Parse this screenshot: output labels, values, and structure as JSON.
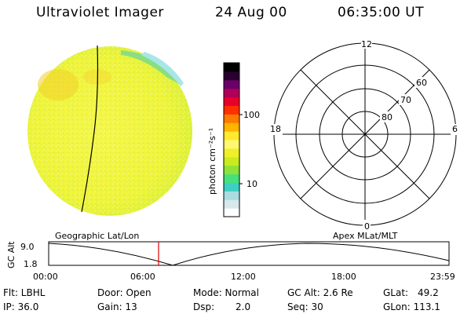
{
  "header": {
    "instrument": "Ultraviolet Imager",
    "date": "24 Aug 00",
    "time": "06:35:00 UT"
  },
  "colorbar": {
    "unit_label": "photon cm⁻²s⁻¹",
    "ticks": [
      "100",
      "10"
    ],
    "colors": [
      "#ffffff",
      "#d8e8ec",
      "#a8dce0",
      "#3ecfc4",
      "#48e07a",
      "#8fe23a",
      "#c8ec20",
      "#eef02a",
      "#fff870",
      "#ffea30",
      "#ffb400",
      "#ff7a00",
      "#ff3000",
      "#e8002a",
      "#b0005a",
      "#6a0068",
      "#2a0030",
      "#000000"
    ]
  },
  "polar": {
    "labels": {
      "top": "12",
      "left": "18",
      "right": "6",
      "bottom": "0",
      "ring_60": "60",
      "ring_70": "70",
      "ring_80": "80"
    }
  },
  "orbit": {
    "left_label": "Geographic Lat/Lon",
    "right_label": "Apex MLat/MLT",
    "y_axis_label": "GC Alt",
    "y_top": "9.0",
    "y_bottom": "1.8",
    "x_ticks": [
      "00:00",
      "06:00",
      "12:00",
      "18:00",
      "23:59"
    ]
  },
  "status": {
    "flt": "Flt: LBHL",
    "ip": "IP: 36.0",
    "door": "Door: Open",
    "gain": "Gain: 13",
    "mode": "Mode: Normal",
    "dsp": "Dsp:",
    "dsp_val": "2.0",
    "gc_alt": "GC Alt: 2.6 Re",
    "seq": "Seq: 30",
    "glat": "GLat:",
    "glat_val": "49.2",
    "glon": "GLon: 113.1"
  }
}
